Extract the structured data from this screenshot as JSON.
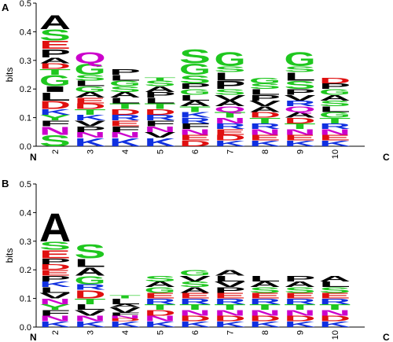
{
  "chart_data": [
    {
      "type": "sequence-logo",
      "panel_label": "A",
      "ylabel": "bits",
      "ylim": [
        0,
        0.5
      ],
      "yticks": [
        "0.0",
        "0.1",
        "0.2",
        "0.3",
        "0.4",
        "0.5"
      ],
      "n_label": "N",
      "c_label": "C",
      "positions": [
        "2",
        "3",
        "4",
        "5",
        "6",
        "7",
        "8",
        "9",
        "10"
      ],
      "stacks": [
        [
          [
            "S",
            0.04
          ],
          [
            "N",
            0.03
          ],
          [
            "F",
            0.02
          ],
          [
            "Y",
            0.02
          ],
          [
            "K",
            0.02
          ],
          [
            "D",
            0.03
          ],
          [
            "L",
            0.03
          ],
          [
            "I",
            0.02
          ],
          [
            "G",
            0.04
          ],
          [
            "T",
            0.02
          ],
          [
            "D",
            0.02
          ],
          [
            "A",
            0.02
          ],
          [
            "P",
            0.03
          ],
          [
            "E",
            0.03
          ],
          [
            "S",
            0.04
          ],
          [
            "A",
            0.05
          ]
        ],
        [
          [
            "K",
            0.03
          ],
          [
            "N",
            0.02
          ],
          [
            "P",
            0.02
          ],
          [
            "V",
            0.02
          ],
          [
            "K",
            0.02
          ],
          [
            "T",
            0.02
          ],
          [
            "D",
            0.02
          ],
          [
            "E",
            0.02
          ],
          [
            "A",
            0.02
          ],
          [
            "G",
            0.02
          ],
          [
            "L",
            0.02
          ],
          [
            "S",
            0.02
          ],
          [
            "G",
            0.04
          ],
          [
            "Q",
            0.04
          ]
        ],
        [
          [
            "K",
            0.03
          ],
          [
            "N",
            0.02
          ],
          [
            "F",
            0.02
          ],
          [
            "E",
            0.02
          ],
          [
            "R",
            0.02
          ],
          [
            "D",
            0.02
          ],
          [
            "T",
            0.02
          ],
          [
            "L",
            0.02
          ],
          [
            "A",
            0.02
          ],
          [
            "S",
            0.02
          ],
          [
            "G",
            0.02
          ],
          [
            "L",
            0.02
          ],
          [
            "P",
            0.02
          ]
        ],
        [
          [
            "K",
            0.03
          ],
          [
            "V",
            0.02
          ],
          [
            "N",
            0.02
          ],
          [
            "F",
            0.02
          ],
          [
            "R",
            0.02
          ],
          [
            "D",
            0.02
          ],
          [
            "T",
            0.02
          ],
          [
            "L",
            0.02
          ],
          [
            "P",
            0.02
          ],
          [
            "A",
            0.02
          ],
          [
            "S",
            0.02
          ],
          [
            "T",
            0.01
          ]
        ],
        [
          [
            "D",
            0.02
          ],
          [
            "E",
            0.02
          ],
          [
            "N",
            0.02
          ],
          [
            "F",
            0.02
          ],
          [
            "R",
            0.02
          ],
          [
            "K",
            0.02
          ],
          [
            "T",
            0.02
          ],
          [
            "A",
            0.02
          ],
          [
            "L",
            0.02
          ],
          [
            "G",
            0.02
          ],
          [
            "P",
            0.02
          ],
          [
            "S",
            0.03
          ],
          [
            "G",
            0.04
          ],
          [
            "S",
            0.05
          ]
        ],
        [
          [
            "K",
            0.02
          ],
          [
            "D",
            0.02
          ],
          [
            "E",
            0.02
          ],
          [
            "R",
            0.02
          ],
          [
            "N",
            0.02
          ],
          [
            "T",
            0.02
          ],
          [
            "Q",
            0.02
          ],
          [
            "A",
            0.02
          ],
          [
            "V",
            0.02
          ],
          [
            "S",
            0.02
          ],
          [
            "P",
            0.03
          ],
          [
            "L",
            0.03
          ],
          [
            "S",
            0.02
          ],
          [
            "G",
            0.05
          ]
        ],
        [
          [
            "K",
            0.02
          ],
          [
            "E",
            0.02
          ],
          [
            "N",
            0.02
          ],
          [
            "R",
            0.02
          ],
          [
            "T",
            0.02
          ],
          [
            "D",
            0.02
          ],
          [
            "A",
            0.02
          ],
          [
            "V",
            0.02
          ],
          [
            "P",
            0.02
          ],
          [
            "L",
            0.02
          ],
          [
            "S",
            0.02
          ],
          [
            "G",
            0.02
          ]
        ],
        [
          [
            "K",
            0.02
          ],
          [
            "E",
            0.02
          ],
          [
            "N",
            0.02
          ],
          [
            "T",
            0.02
          ],
          [
            "D",
            0.02
          ],
          [
            "A",
            0.02
          ],
          [
            "Q",
            0.02
          ],
          [
            "R",
            0.02
          ],
          [
            "V",
            0.02
          ],
          [
            "P",
            0.02
          ],
          [
            "S",
            0.03
          ],
          [
            "L",
            0.03
          ],
          [
            "S",
            0.02
          ],
          [
            "G",
            0.05
          ]
        ],
        [
          [
            "K",
            0.02
          ],
          [
            "E",
            0.02
          ],
          [
            "N",
            0.02
          ],
          [
            "R",
            0.02
          ],
          [
            "T",
            0.02
          ],
          [
            "G",
            0.02
          ],
          [
            "L",
            0.02
          ],
          [
            "S",
            0.02
          ],
          [
            "A",
            0.02
          ],
          [
            "G",
            0.02
          ],
          [
            "P",
            0.02
          ],
          [
            "D",
            0.02
          ]
        ]
      ]
    },
    {
      "type": "sequence-logo",
      "panel_label": "B",
      "ylabel": "bits",
      "ylim": [
        0,
        0.5
      ],
      "yticks": [
        "0.0",
        "0.1",
        "0.2",
        "0.3",
        "0.4",
        "0.5"
      ],
      "n_label": "N",
      "c_label": "C",
      "positions": [
        "2",
        "3",
        "4",
        "5",
        "6",
        "7",
        "8",
        "9",
        "10"
      ],
      "stacks": [
        [
          [
            "K",
            0.02
          ],
          [
            "N",
            0.02
          ],
          [
            "F",
            0.02
          ],
          [
            "Y",
            0.02
          ],
          [
            "N",
            0.02
          ],
          [
            "V",
            0.02
          ],
          [
            "L",
            0.02
          ],
          [
            "K",
            0.02
          ],
          [
            "P",
            0.02
          ],
          [
            "E",
            0.02
          ],
          [
            "D",
            0.02
          ],
          [
            "P",
            0.02
          ],
          [
            "E",
            0.03
          ],
          [
            "S",
            0.03
          ],
          [
            "A",
            0.1
          ]
        ],
        [
          [
            "K",
            0.02
          ],
          [
            "N",
            0.02
          ],
          [
            "V",
            0.02
          ],
          [
            "L",
            0.02
          ],
          [
            "T",
            0.02
          ],
          [
            "D",
            0.03
          ],
          [
            "R",
            0.02
          ],
          [
            "G",
            0.03
          ],
          [
            "A",
            0.03
          ],
          [
            "L",
            0.03
          ],
          [
            "S",
            0.05
          ]
        ],
        [
          [
            "K",
            0.02
          ],
          [
            "D",
            0.01
          ],
          [
            "N",
            0.01
          ],
          [
            "F",
            0.01
          ],
          [
            "V",
            0.02
          ],
          [
            "A",
            0.01
          ],
          [
            "L",
            0.02
          ],
          [
            "T",
            0.01
          ]
        ],
        [
          [
            "K",
            0.02
          ],
          [
            "N",
            0.02
          ],
          [
            "D",
            0.02
          ],
          [
            "T",
            0.02
          ],
          [
            "R",
            0.02
          ],
          [
            "E",
            0.02
          ],
          [
            "G",
            0.02
          ],
          [
            "A",
            0.02
          ],
          [
            "S",
            0.02
          ]
        ],
        [
          [
            "K",
            0.02
          ],
          [
            "D",
            0.02
          ],
          [
            "N",
            0.02
          ],
          [
            "T",
            0.02
          ],
          [
            "R",
            0.02
          ],
          [
            "E",
            0.02
          ],
          [
            "A",
            0.02
          ],
          [
            "S",
            0.02
          ],
          [
            "V",
            0.02
          ],
          [
            "G",
            0.02
          ]
        ],
        [
          [
            "K",
            0.02
          ],
          [
            "D",
            0.02
          ],
          [
            "N",
            0.02
          ],
          [
            "T",
            0.02
          ],
          [
            "R",
            0.02
          ],
          [
            "E",
            0.02
          ],
          [
            "P",
            0.02
          ],
          [
            "V",
            0.02
          ],
          [
            "L",
            0.02
          ],
          [
            "A",
            0.02
          ]
        ],
        [
          [
            "K",
            0.02
          ],
          [
            "D",
            0.02
          ],
          [
            "N",
            0.02
          ],
          [
            "T",
            0.02
          ],
          [
            "R",
            0.02
          ],
          [
            "E",
            0.02
          ],
          [
            "S",
            0.02
          ],
          [
            "A",
            0.02
          ],
          [
            "L",
            0.02
          ]
        ],
        [
          [
            "K",
            0.02
          ],
          [
            "D",
            0.02
          ],
          [
            "N",
            0.02
          ],
          [
            "T",
            0.02
          ],
          [
            "R",
            0.02
          ],
          [
            "E",
            0.02
          ],
          [
            "S",
            0.02
          ],
          [
            "A",
            0.02
          ],
          [
            "P",
            0.02
          ]
        ],
        [
          [
            "K",
            0.02
          ],
          [
            "D",
            0.02
          ],
          [
            "N",
            0.02
          ],
          [
            "T",
            0.02
          ],
          [
            "R",
            0.02
          ],
          [
            "E",
            0.02
          ],
          [
            "S",
            0.02
          ],
          [
            "L",
            0.02
          ],
          [
            "A",
            0.02
          ]
        ]
      ]
    }
  ],
  "residue_colors": {
    "A": "#000000",
    "V": "#000000",
    "L": "#000000",
    "I": "#000000",
    "P": "#000000",
    "F": "#000000",
    "M": "#000000",
    "W": "#000000",
    "G": "#1fc71f",
    "S": "#1fc71f",
    "T": "#1fc71f",
    "Y": "#1fc71f",
    "C": "#1fc71f",
    "Q": "#cc00cc",
    "N": "#cc00cc",
    "K": "#1030e0",
    "R": "#1030e0",
    "H": "#1030e0",
    "D": "#e01010",
    "E": "#e01010"
  }
}
